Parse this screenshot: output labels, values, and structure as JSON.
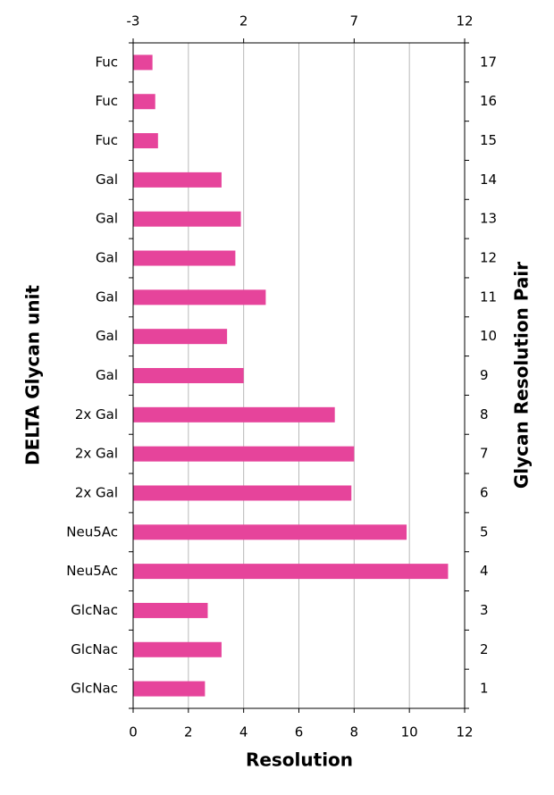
{
  "chart_data": {
    "type": "barh",
    "x_label": "Resolution",
    "y_label": "DELTA Glycan unit",
    "y2_label": "Glycan Resolution Pair",
    "categories": [
      "GlcNac",
      "GlcNac",
      "GlcNac",
      "Neu5Ac",
      "Neu5Ac",
      "2x Gal",
      "2x Gal",
      "2x Gal",
      "Gal",
      "Gal",
      "Gal",
      "Gal",
      "Gal",
      "Gal",
      "Fuc",
      "Fuc",
      "Fuc"
    ],
    "y2_categories": [
      1,
      2,
      3,
      4,
      5,
      6,
      7,
      8,
      9,
      10,
      11,
      12,
      13,
      14,
      15,
      16,
      17
    ],
    "values": [
      2.6,
      3.2,
      2.7,
      11.4,
      9.9,
      7.9,
      8.0,
      7.3,
      4.0,
      3.4,
      4.8,
      3.7,
      3.9,
      3.2,
      0.9,
      0.8,
      0.7
    ],
    "color": "#e6449b",
    "xlim": [
      0,
      12
    ],
    "xticks": [
      0,
      2,
      4,
      6,
      8,
      10,
      12
    ],
    "x2lim": [
      -3,
      12
    ],
    "x2ticks": [
      -3,
      2,
      7,
      12
    ],
    "grid": true
  }
}
